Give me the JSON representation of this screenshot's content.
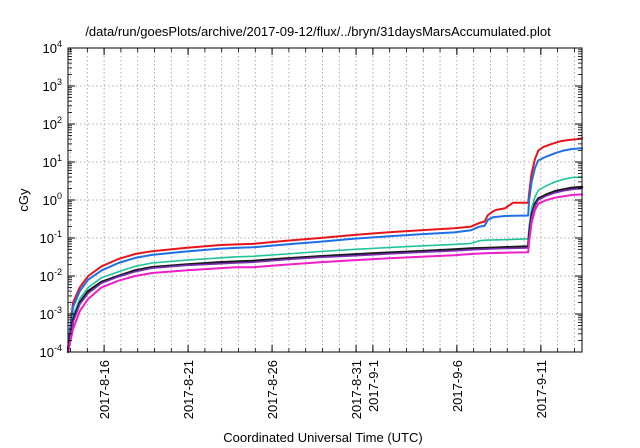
{
  "chart_data": {
    "type": "line",
    "title": "/data/run/goesPlots/archive/2017-09-12/flux/../bryn/31daysMarsAccumulated.plot",
    "xlabel": "Coordinated Universal Time (UTC)",
    "ylabel": "cGy",
    "yscale": "log",
    "ylim": [
      0.0001,
      10000
    ],
    "xlim": [
      0,
      30.6
    ],
    "grid": true,
    "legend": "none",
    "y_ticks": [
      {
        "value": 0.0001,
        "base": "10",
        "exp": "-4"
      },
      {
        "value": 0.001,
        "base": "10",
        "exp": "-3"
      },
      {
        "value": 0.01,
        "base": "10",
        "exp": "-2"
      },
      {
        "value": 0.1,
        "base": "10",
        "exp": "-1"
      },
      {
        "value": 1,
        "base": "10",
        "exp": "0"
      },
      {
        "value": 10,
        "base": "10",
        "exp": "1"
      },
      {
        "value": 100,
        "base": "10",
        "exp": "2"
      },
      {
        "value": 1000,
        "base": "10",
        "exp": "3"
      },
      {
        "value": 10000,
        "base": "10",
        "exp": "4"
      }
    ],
    "x_ticks": [
      {
        "x": 2.15,
        "label": "2017-8-16"
      },
      {
        "x": 7.15,
        "label": "2017-8-21"
      },
      {
        "x": 12.15,
        "label": "2017-8-26"
      },
      {
        "x": 17.15,
        "label": "2017-8-31"
      },
      {
        "x": 18.15,
        "label": "2017-9-1"
      },
      {
        "x": 23.15,
        "label": "2017-9-6"
      },
      {
        "x": 28.15,
        "label": "2017-9-11"
      }
    ],
    "series": [
      {
        "color": "#e8141c",
        "width": 2.0,
        "x": [
          0,
          0.3,
          0.7,
          1.2,
          2,
          3,
          4,
          5,
          7,
          9,
          10,
          11,
          13,
          15,
          17,
          19,
          21,
          23,
          24,
          24.5,
          24.8,
          25,
          25.3,
          25.5,
          26,
          26.5,
          27.4,
          27.45,
          27.6,
          27.8,
          28,
          28.3,
          28.8,
          29.3,
          29.8,
          30.3,
          30.6
        ],
        "y": [
          0.00012,
          0.002,
          0.005,
          0.01,
          0.018,
          0.028,
          0.038,
          0.045,
          0.055,
          0.065,
          0.068,
          0.07,
          0.085,
          0.1,
          0.12,
          0.14,
          0.16,
          0.18,
          0.2,
          0.25,
          0.27,
          0.4,
          0.5,
          0.55,
          0.6,
          0.85,
          0.85,
          1.5,
          5,
          12,
          20,
          25,
          30,
          35,
          38,
          40,
          42
        ]
      },
      {
        "color": "#1e6fe6",
        "width": 2.0,
        "x": [
          0,
          0.3,
          0.7,
          1.2,
          2,
          3,
          4,
          5,
          7,
          9,
          10,
          11,
          13,
          15,
          17,
          19,
          21,
          23,
          24,
          24.5,
          24.8,
          25,
          25.3,
          26,
          27.4,
          27.45,
          27.6,
          27.8,
          28,
          28.5,
          29,
          29.5,
          30,
          30.6
        ],
        "y": [
          0.00012,
          0.0015,
          0.004,
          0.008,
          0.014,
          0.022,
          0.03,
          0.036,
          0.044,
          0.052,
          0.055,
          0.057,
          0.068,
          0.08,
          0.095,
          0.11,
          0.125,
          0.14,
          0.16,
          0.2,
          0.21,
          0.3,
          0.35,
          0.38,
          0.39,
          1.0,
          3,
          7,
          11,
          14,
          17,
          20,
          22,
          23
        ]
      },
      {
        "color": "#20c39a",
        "width": 1.6,
        "x": [
          0,
          0.3,
          0.7,
          1.2,
          2,
          3,
          4,
          5,
          7,
          9,
          10,
          11,
          13,
          15,
          17,
          19,
          21,
          23,
          24,
          24.5,
          25,
          26,
          27.4,
          27.45,
          27.6,
          27.8,
          28,
          28.5,
          29,
          29.5,
          30,
          30.6
        ],
        "y": [
          0.0001,
          0.0009,
          0.0025,
          0.005,
          0.009,
          0.013,
          0.018,
          0.022,
          0.026,
          0.03,
          0.032,
          0.033,
          0.038,
          0.044,
          0.05,
          0.056,
          0.062,
          0.068,
          0.072,
          0.085,
          0.088,
          0.09,
          0.095,
          0.2,
          0.6,
          1.2,
          1.8,
          2.4,
          3,
          3.5,
          3.9,
          4.0
        ]
      },
      {
        "color": "#1a1a1a",
        "width": 2.4,
        "x": [
          0,
          0.3,
          0.7,
          1.2,
          2,
          3,
          4,
          5,
          7,
          9,
          10,
          11,
          13,
          15,
          17,
          19,
          21,
          23,
          24,
          25,
          26,
          27.4,
          27.45,
          27.6,
          27.8,
          28,
          28.5,
          29,
          29.5,
          30,
          30.6
        ],
        "y": [
          0.0001,
          0.0007,
          0.002,
          0.004,
          0.007,
          0.01,
          0.014,
          0.017,
          0.02,
          0.023,
          0.024,
          0.025,
          0.029,
          0.033,
          0.037,
          0.041,
          0.045,
          0.05,
          0.053,
          0.055,
          0.057,
          0.06,
          0.12,
          0.4,
          0.8,
          1.1,
          1.4,
          1.7,
          1.9,
          2.1,
          2.2
        ]
      },
      {
        "color": "#7b2fb5",
        "width": 1.6,
        "x": [
          0,
          0.3,
          0.7,
          1.2,
          2,
          3,
          4,
          5,
          7,
          9,
          10,
          11,
          13,
          15,
          17,
          19,
          21,
          23,
          24,
          25,
          26,
          27.4,
          27.45,
          27.6,
          27.8,
          28,
          28.5,
          29,
          29.5,
          30,
          30.6
        ],
        "y": [
          0.0001,
          0.0006,
          0.0018,
          0.0035,
          0.0065,
          0.0095,
          0.013,
          0.016,
          0.019,
          0.021,
          0.022,
          0.023,
          0.027,
          0.031,
          0.034,
          0.038,
          0.042,
          0.046,
          0.049,
          0.051,
          0.053,
          0.055,
          0.1,
          0.35,
          0.7,
          1.0,
          1.3,
          1.55,
          1.75,
          1.9,
          2.0
        ]
      },
      {
        "color": "#ee1ec8",
        "width": 2.0,
        "x": [
          0,
          0.3,
          0.7,
          1.2,
          2,
          3,
          4,
          5,
          7,
          9,
          10,
          11,
          13,
          15,
          17,
          19,
          21,
          23,
          24,
          25,
          26,
          27.4,
          27.45,
          27.6,
          27.8,
          28,
          28.5,
          29,
          29.5,
          30,
          30.6
        ],
        "y": [
          0.0001,
          0.0004,
          0.0012,
          0.0025,
          0.005,
          0.0075,
          0.01,
          0.012,
          0.014,
          0.016,
          0.017,
          0.017,
          0.02,
          0.023,
          0.026,
          0.029,
          0.032,
          0.035,
          0.038,
          0.04,
          0.041,
          0.042,
          0.08,
          0.25,
          0.55,
          0.8,
          1.0,
          1.15,
          1.25,
          1.35,
          1.4
        ]
      }
    ]
  }
}
